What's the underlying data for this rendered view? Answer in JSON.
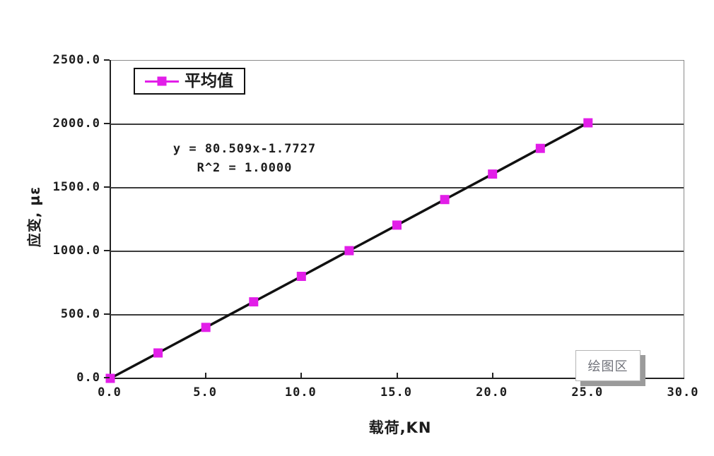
{
  "colors": {
    "background": "#ffffff",
    "text": "#1c1c1c",
    "grid": "#3c3c3c",
    "plot_border": "#8a8a8a",
    "axis": "#222222",
    "marker": "#E21EE8",
    "trendline": "#111111",
    "legend_border": "#111111",
    "tooltip_text": "#70727a",
    "tooltip_border": "#b5b5b5",
    "tooltip_shadow": "#9b9b9b"
  },
  "tooltip": {
    "text": "绘图区"
  },
  "chart_data": {
    "type": "line",
    "title": "",
    "xlabel": "载荷,KN",
    "ylabel": "应变, με",
    "xlim": [
      0,
      30
    ],
    "ylim": [
      0,
      2500
    ],
    "x_ticks": [
      "0.0",
      "5.0",
      "10.0",
      "15.0",
      "20.0",
      "25.0",
      "30.0"
    ],
    "x_tick_values": [
      0,
      5,
      10,
      15,
      20,
      25,
      30
    ],
    "y_ticks": [
      "0.0",
      "500.0",
      "1000.0",
      "1500.0",
      "2000.0",
      "2500.0"
    ],
    "y_tick_values": [
      0,
      500,
      1000,
      1500,
      2000,
      2500
    ],
    "grid": "horizontal",
    "legend_position": "top-left-inside",
    "series": [
      {
        "name": "平均值",
        "marker": "square",
        "marker_color": "#E21EE8",
        "line_color": "#111111",
        "x": [
          0,
          2.5,
          5,
          7.5,
          10,
          12.5,
          15,
          17.5,
          20,
          22.5,
          25
        ],
        "y": [
          0,
          200,
          401,
          602,
          803,
          1005,
          1206,
          1407,
          1608,
          1810,
          2011
        ]
      }
    ],
    "trendline": {
      "equation_label": "y = 80.509x-1.7727",
      "r2_label": "R^2 = 1.0000",
      "slope": 80.509,
      "intercept": -1.7727
    }
  }
}
